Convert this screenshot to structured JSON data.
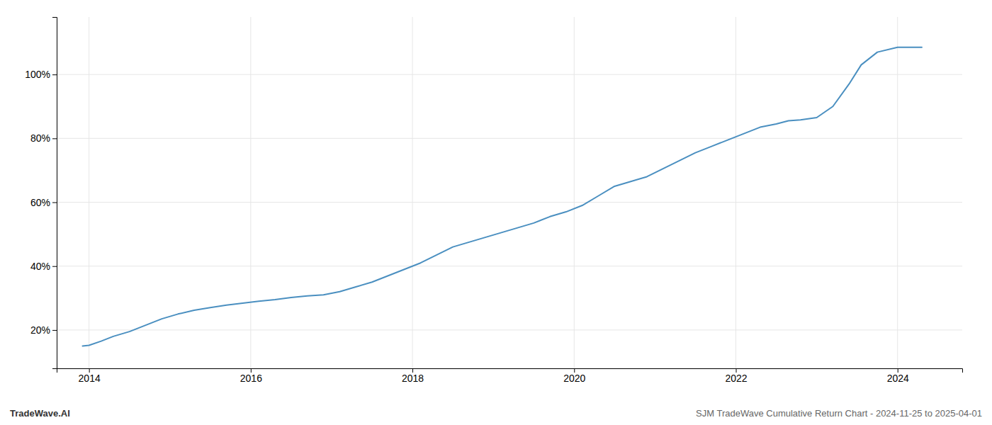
{
  "chart_data": {
    "type": "line",
    "title": "SJM TradeWave Cumulative Return Chart - 2024-11-25 to 2025-04-01",
    "annotations": [
      "TradeWave.AI"
    ],
    "color": "#4a8fc0",
    "grid": true,
    "x": [
      2013.92,
      2014.0,
      2014.15,
      2014.3,
      2014.5,
      2014.7,
      2014.9,
      2015.1,
      2015.3,
      2015.5,
      2015.7,
      2015.9,
      2016.1,
      2016.3,
      2016.5,
      2016.7,
      2016.9,
      2017.1,
      2017.3,
      2017.5,
      2017.7,
      2017.9,
      2018.1,
      2018.3,
      2018.5,
      2018.7,
      2018.9,
      2019.1,
      2019.3,
      2019.5,
      2019.7,
      2019.9,
      2020.1,
      2020.3,
      2020.5,
      2020.7,
      2020.9,
      2021.1,
      2021.3,
      2021.5,
      2021.7,
      2021.9,
      2022.1,
      2022.3,
      2022.5,
      2022.65,
      2022.8,
      2023.0,
      2023.2,
      2023.4,
      2023.55,
      2023.75,
      2024.0,
      2024.15,
      2024.3
    ],
    "values": [
      15.0,
      15.2,
      16.5,
      18.0,
      19.5,
      21.5,
      23.5,
      25.0,
      26.2,
      27.0,
      27.8,
      28.4,
      29.0,
      29.5,
      30.2,
      30.7,
      31.0,
      32.0,
      33.5,
      35.0,
      37.0,
      39.0,
      41.0,
      43.5,
      46.0,
      47.5,
      49.0,
      50.5,
      52.0,
      53.5,
      55.5,
      57.0,
      59.0,
      62.0,
      65.0,
      66.5,
      68.0,
      70.5,
      73.0,
      75.5,
      77.5,
      79.5,
      81.5,
      83.5,
      84.5,
      85.5,
      85.8,
      86.5,
      90.0,
      97.0,
      103.0,
      107.0,
      108.5,
      108.5,
      108.5
    ],
    "xlim": [
      2013.6,
      2024.8
    ],
    "ylim": [
      8,
      118
    ],
    "xticks": [
      2014,
      2016,
      2018,
      2020,
      2022,
      2024
    ],
    "yticks": [
      {
        "value": 20,
        "label": "20%"
      },
      {
        "value": 40,
        "label": "40%"
      },
      {
        "value": 60,
        "label": "60%"
      },
      {
        "value": 80,
        "label": "80%"
      },
      {
        "value": 100,
        "label": "100%"
      }
    ]
  }
}
